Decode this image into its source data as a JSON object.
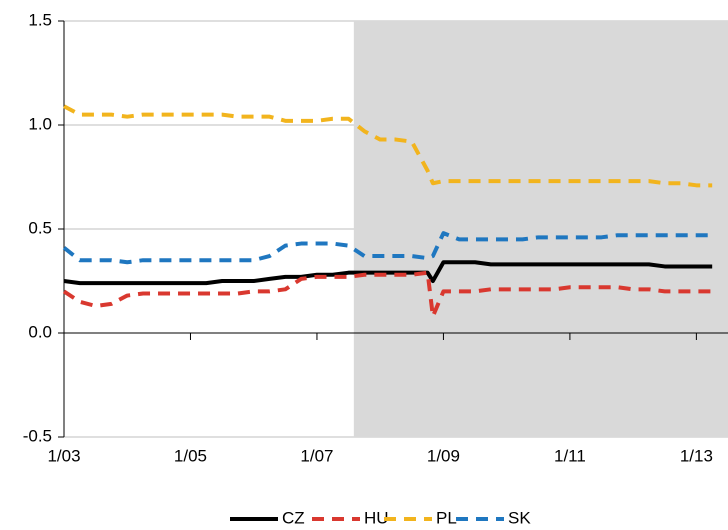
{
  "chart_data": {
    "type": "line",
    "x": [
      "2003-01",
      "2003-04",
      "2003-07",
      "2003-10",
      "2004-01",
      "2004-04",
      "2004-07",
      "2004-10",
      "2005-01",
      "2005-04",
      "2005-07",
      "2005-10",
      "2006-01",
      "2006-04",
      "2006-07",
      "2006-10",
      "2007-01",
      "2007-04",
      "2007-07",
      "2007-10",
      "2008-01",
      "2008-04",
      "2008-07",
      "2008-10",
      "2008-11",
      "2009-01",
      "2009-04",
      "2009-07",
      "2009-10",
      "2010-01",
      "2010-04",
      "2010-07",
      "2010-10",
      "2011-01",
      "2011-04",
      "2011-07",
      "2011-10",
      "2012-01",
      "2012-04",
      "2012-07",
      "2012-10",
      "2013-01",
      "2013-04"
    ],
    "series": [
      {
        "name": "CZ",
        "color": "#000000",
        "dashed": false,
        "values": [
          0.25,
          0.24,
          0.24,
          0.24,
          0.24,
          0.24,
          0.24,
          0.24,
          0.24,
          0.24,
          0.25,
          0.25,
          0.25,
          0.26,
          0.27,
          0.27,
          0.28,
          0.28,
          0.29,
          0.29,
          0.29,
          0.29,
          0.29,
          0.29,
          0.25,
          0.34,
          0.34,
          0.34,
          0.33,
          0.33,
          0.33,
          0.33,
          0.33,
          0.33,
          0.33,
          0.33,
          0.33,
          0.33,
          0.33,
          0.32,
          0.32,
          0.32,
          0.32
        ]
      },
      {
        "name": "HU",
        "color": "#d9382f",
        "dashed": true,
        "values": [
          0.2,
          0.15,
          0.13,
          0.14,
          0.18,
          0.19,
          0.19,
          0.19,
          0.19,
          0.19,
          0.19,
          0.19,
          0.2,
          0.2,
          0.21,
          0.26,
          0.27,
          0.27,
          0.27,
          0.28,
          0.28,
          0.28,
          0.28,
          0.29,
          0.08,
          0.2,
          0.2,
          0.2,
          0.21,
          0.21,
          0.21,
          0.21,
          0.21,
          0.22,
          0.22,
          0.22,
          0.22,
          0.21,
          0.21,
          0.2,
          0.2,
          0.2,
          0.2
        ]
      },
      {
        "name": "PL",
        "color": "#f2b41d",
        "dashed": true,
        "values": [
          1.09,
          1.05,
          1.05,
          1.05,
          1.04,
          1.05,
          1.05,
          1.05,
          1.05,
          1.05,
          1.05,
          1.04,
          1.04,
          1.04,
          1.02,
          1.02,
          1.02,
          1.03,
          1.03,
          0.97,
          0.93,
          0.93,
          0.92,
          0.78,
          0.72,
          0.73,
          0.73,
          0.73,
          0.73,
          0.73,
          0.73,
          0.73,
          0.73,
          0.73,
          0.73,
          0.73,
          0.73,
          0.73,
          0.73,
          0.72,
          0.72,
          0.71,
          0.71
        ]
      },
      {
        "name": "SK",
        "color": "#1f77c0",
        "dashed": true,
        "values": [
          0.41,
          0.35,
          0.35,
          0.35,
          0.34,
          0.35,
          0.35,
          0.35,
          0.35,
          0.35,
          0.35,
          0.35,
          0.35,
          0.37,
          0.42,
          0.43,
          0.43,
          0.43,
          0.42,
          0.37,
          0.37,
          0.37,
          0.37,
          0.36,
          0.37,
          0.48,
          0.45,
          0.45,
          0.45,
          0.45,
          0.45,
          0.46,
          0.46,
          0.46,
          0.46,
          0.46,
          0.47,
          0.47,
          0.47,
          0.47,
          0.47,
          0.47,
          0.47
        ]
      }
    ],
    "xlim": [
      "2003-01",
      "2013-07"
    ],
    "xticks": [
      {
        "value": "2003-01",
        "label": "1/03"
      },
      {
        "value": "2005-01",
        "label": "1/05"
      },
      {
        "value": "2007-01",
        "label": "1/07"
      },
      {
        "value": "2009-01",
        "label": "1/09"
      },
      {
        "value": "2011-01",
        "label": "1/11"
      },
      {
        "value": "2013-01",
        "label": "1/13"
      }
    ],
    "ylim": [
      -0.5,
      1.5
    ],
    "yticks": [
      -0.5,
      {
        "value": 0,
        "label": "0.0"
      },
      0.5,
      {
        "value": 1,
        "label": "1.0"
      },
      1.5
    ],
    "grid": true,
    "shaded_from": "2007-08",
    "shade_color": "#d9d9d9",
    "legend": "bottom"
  }
}
